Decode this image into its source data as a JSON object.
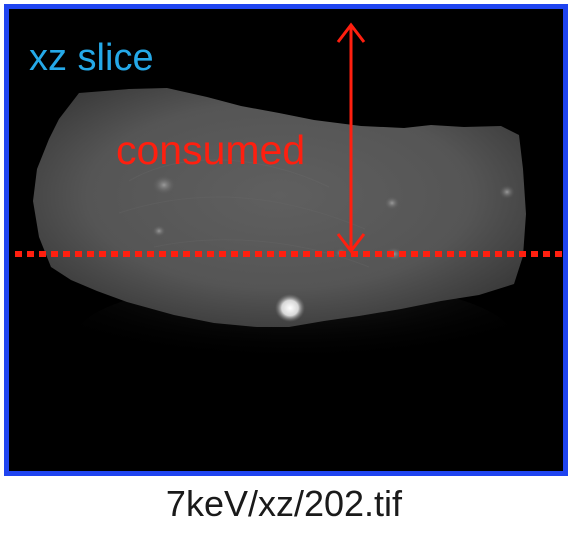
{
  "image": {
    "slice_label": "xz slice",
    "annotation_label": "consumed",
    "caption": "7keV/xz/202.tif"
  },
  "colors": {
    "frame_border": "#1f44f0",
    "slice_label": "#25a9e8",
    "annotation": "#ff1f0f",
    "dotted_line": "#ff1f0f",
    "background": "#000000"
  },
  "icons": {
    "measurement": "double-headed-arrow-icon"
  }
}
